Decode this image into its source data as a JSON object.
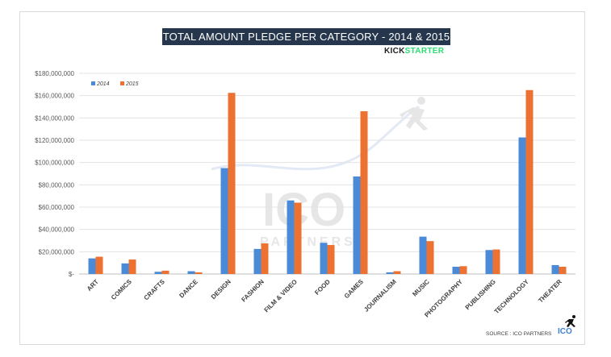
{
  "chart_data": {
    "type": "bar",
    "title": "TOTAL AMOUNT PLEDGE PER CATEGORY - 2014 & 2015",
    "categories": [
      "ART",
      "COMICS",
      "CRAFTS",
      "DANCE",
      "DESIGN",
      "FASHION",
      "FILM & VIDEO",
      "FOOD",
      "GAMES",
      "JOURNALISM",
      "MUSIC",
      "PHOTOGRAPHY",
      "PUBLISHING",
      "TECHNOLOGY",
      "THEATER"
    ],
    "series": [
      {
        "name": "2014",
        "color": "#4a8ad6",
        "values": [
          14000000,
          9500000,
          2000000,
          2500000,
          95000000,
          22500000,
          66000000,
          28000000,
          87500000,
          1500000,
          33500000,
          6500000,
          21500000,
          122500000,
          8000000
        ]
      },
      {
        "name": "2015",
        "color": "#ed7232",
        "values": [
          15500000,
          13000000,
          3000000,
          1500000,
          162500000,
          27500000,
          64000000,
          26000000,
          146000000,
          2500000,
          29500000,
          7000000,
          22000000,
          165000000,
          6500000
        ]
      }
    ],
    "ylim": [
      0,
      180000000
    ],
    "yticks": [
      0,
      20000000,
      40000000,
      60000000,
      80000000,
      100000000,
      120000000,
      140000000,
      160000000,
      180000000
    ],
    "ytick_labels": [
      "$-",
      "$20,000,000",
      "$40,000,000",
      "$60,000,000",
      "$80,000,000",
      "$100,000,000",
      "$120,000,000",
      "$140,000,000",
      "$160,000,000",
      "$180,000,000"
    ],
    "xlabel": "",
    "ylabel": "",
    "grid": true,
    "legend_position": "top-left"
  },
  "brand": {
    "kick": "KICK",
    "starter": "STARTER"
  },
  "watermark": {
    "big": "ICO",
    "small": "PARTNERS"
  },
  "source_text": "SOURCE : ICO PARTNERS",
  "footer_logo": "ICO"
}
